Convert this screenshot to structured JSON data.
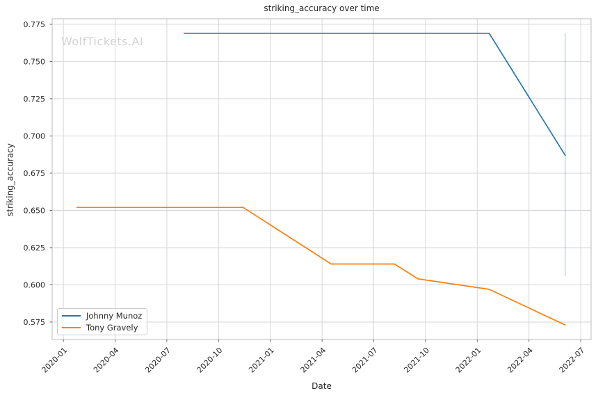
{
  "figure": {
    "title": "striking_accuracy over time",
    "watermark": "WolfTickets.AI",
    "xlabel": "Date",
    "ylabel": "striking_accuracy"
  },
  "legend": {
    "position": "lower left",
    "items": [
      {
        "label": "Johnny Munoz",
        "color": "#1f77b4"
      },
      {
        "label": "Tony Gravely",
        "color": "#ff7f0e"
      }
    ]
  },
  "colors": {
    "text": "#262626",
    "grid": "#d6d6d6",
    "spine": "#c6c6c6",
    "tick_mark": "#555555",
    "watermark": "#d2d2d2",
    "johnny_munoz_line": "#1f77b4",
    "tony_gravely_line": "#ff7f0e",
    "confidence_line": "rgba(31,119,180,0.3)"
  },
  "chart_data": {
    "type": "line",
    "title": "striking_accuracy over time",
    "xlabel": "Date",
    "ylabel": "striking_accuracy",
    "grid": true,
    "legend_position": "lower left",
    "x_tick_labels": [
      "2020-01",
      "2020-04",
      "2020-07",
      "2020-10",
      "2021-01",
      "2021-04",
      "2021-07",
      "2021-10",
      "2022-01",
      "2022-04",
      "2022-07"
    ],
    "x_tick_rotation_deg": 45,
    "y_tick_labels": [
      "0.575",
      "0.600",
      "0.625",
      "0.650",
      "0.675",
      "0.700",
      "0.725",
      "0.750",
      "0.775"
    ],
    "xlim_months_from_2020_01": [
      -0.65,
      30.6
    ],
    "ylim": [
      0.5633,
      0.7787
    ],
    "series": [
      {
        "name": "Johnny Munoz",
        "color": "#1f77b4",
        "points": [
          {
            "date": "2020-08-01",
            "value": 0.769
          },
          {
            "date": "2022-01-22",
            "value": 0.769
          },
          {
            "date": "2022-06-04",
            "value": 0.687
          }
        ]
      },
      {
        "name": "Tony Gravely",
        "color": "#ff7f0e",
        "points": [
          {
            "date": "2020-01-25",
            "value": 0.652
          },
          {
            "date": "2020-11-14",
            "value": 0.652
          },
          {
            "date": "2021-04-17",
            "value": 0.614
          },
          {
            "date": "2021-08-07",
            "value": 0.614
          },
          {
            "date": "2021-09-18",
            "value": 0.604
          },
          {
            "date": "2022-01-22",
            "value": 0.597
          },
          {
            "date": "2022-06-04",
            "value": 0.573
          }
        ]
      }
    ],
    "error_bar": {
      "series": "Johnny Munoz",
      "date": "2022-06-04",
      "low": 0.606,
      "high": 0.769
    }
  }
}
